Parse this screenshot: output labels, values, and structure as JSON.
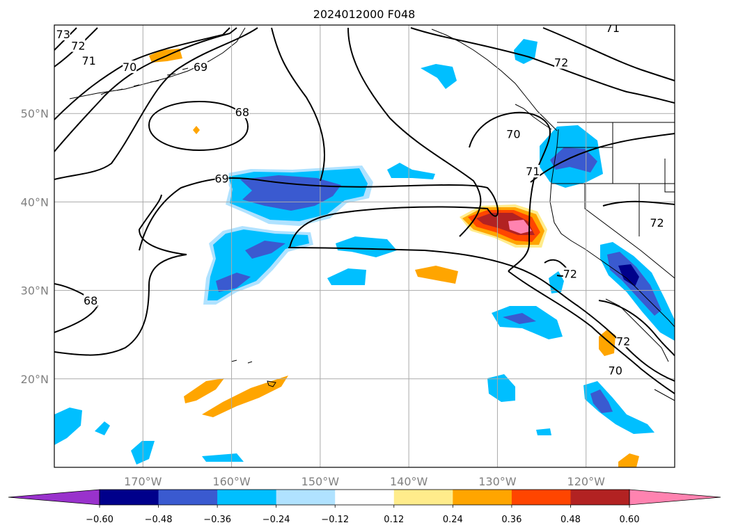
{
  "title": "2024012000 F048",
  "map": {
    "lon_range": [
      -180,
      -110
    ],
    "lat_range": [
      10,
      60
    ],
    "gridlines": true,
    "lon_ticks": [
      {
        "lon": -170,
        "label": "170°W"
      },
      {
        "lon": -160,
        "label": "160°W"
      },
      {
        "lon": -150,
        "label": "150°W"
      },
      {
        "lon": -140,
        "label": "140°W"
      },
      {
        "lon": -130,
        "label": "130°W"
      },
      {
        "lon": -120,
        "label": "120°W"
      }
    ],
    "lat_ticks": [
      {
        "lat": 20,
        "label": "20°N"
      },
      {
        "lat": 30,
        "label": "30°N"
      },
      {
        "lat": 40,
        "label": "40°N"
      },
      {
        "lat": 50,
        "label": "50°N"
      }
    ]
  },
  "contour_labels": [
    {
      "text": "73",
      "lon": -179,
      "lat": 58.9
    },
    {
      "text": "72",
      "lon": -177.3,
      "lat": 57.6
    },
    {
      "text": "71",
      "lon": -176.1,
      "lat": 55.9
    },
    {
      "text": "70",
      "lon": -171.5,
      "lat": 55.2
    },
    {
      "text": "69",
      "lon": -163.5,
      "lat": 55.2
    },
    {
      "text": "68",
      "lon": -158.8,
      "lat": 50.1
    },
    {
      "text": "69",
      "lon": -161.1,
      "lat": 42.6
    },
    {
      "text": "70",
      "lon": -128.2,
      "lat": 47.6
    },
    {
      "text": "71",
      "lon": -126,
      "lat": 43.4
    },
    {
      "text": "72",
      "lon": -122.8,
      "lat": 55.7
    },
    {
      "text": "71",
      "lon": -117,
      "lat": 59.6
    },
    {
      "text": "72",
      "lon": -112,
      "lat": 37.6
    },
    {
      "text": "72",
      "lon": -121.8,
      "lat": 31.8
    },
    {
      "text": "72",
      "lon": -115.8,
      "lat": 24.2
    },
    {
      "text": "70",
      "lon": -116.7,
      "lat": 20.9
    },
    {
      "text": "68",
      "lon": -175.9,
      "lat": 28.8
    }
  ],
  "colorbar": {
    "colors": [
      "#9932cc",
      "#00008b",
      "#3a5ad0",
      "#00bfff",
      "#b0e2ff",
      "#ffffff",
      "#ffec8b",
      "#ffa500",
      "#ff4500",
      "#b22222",
      "#ff83b0"
    ],
    "tick_labels": [
      "−0.60",
      "−0.48",
      "−0.36",
      "−0.24",
      "−0.12",
      "0.12",
      "0.24",
      "0.36",
      "0.48",
      "0.60"
    ]
  }
}
